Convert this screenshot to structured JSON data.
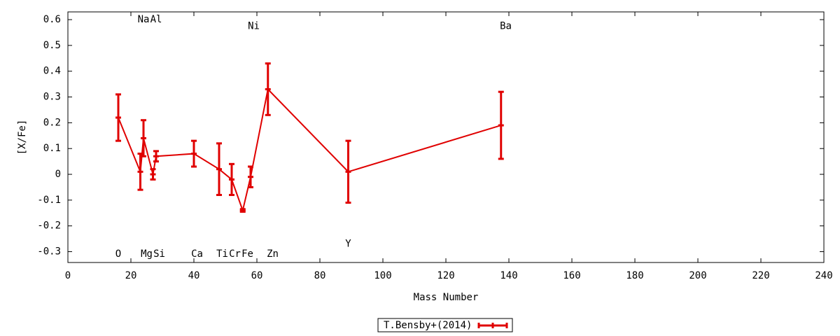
{
  "chart_data": {
    "type": "errorbar-line",
    "xlabel": "Mass Number",
    "ylabel": "[X/Fe]",
    "xlim": [
      0,
      240
    ],
    "xticks": [
      0,
      20,
      40,
      60,
      80,
      100,
      120,
      140,
      160,
      180,
      200,
      220,
      240
    ],
    "ylim": [
      -0.342,
      0.63
    ],
    "yticks": [
      -0.3,
      -0.2,
      -0.1,
      0,
      0.1,
      0.2,
      0.3,
      0.4,
      0.5,
      0.6
    ],
    "grid": false,
    "legend": "bottom",
    "series": [
      {
        "name": "T.Bensby+(2014)",
        "color": "#e00000",
        "x": [
          16,
          23,
          24,
          27,
          28,
          40,
          48,
          52,
          55.5,
          58,
          63.5,
          89,
          137.5
        ],
        "values": [
          0.22,
          0.01,
          0.14,
          0.0,
          0.07,
          0.08,
          0.02,
          -0.02,
          -0.14,
          -0.01,
          0.33,
          0.01,
          0.19
        ],
        "errors": [
          0.09,
          0.07,
          0.07,
          0.02,
          0.02,
          0.05,
          0.1,
          0.06,
          0.005,
          0.04,
          0.1,
          0.12,
          0.13
        ]
      }
    ],
    "annotations": [
      {
        "text": "O",
        "x": 16,
        "y": -0.31
      },
      {
        "text": "Na",
        "x": 24,
        "y": 0.6
      },
      {
        "text": "Mg",
        "x": 25,
        "y": -0.31
      },
      {
        "text": "Al",
        "x": 28,
        "y": 0.6
      },
      {
        "text": "Si",
        "x": 29,
        "y": -0.31
      },
      {
        "text": "Ca",
        "x": 41,
        "y": -0.31
      },
      {
        "text": "Ti",
        "x": 49,
        "y": -0.31
      },
      {
        "text": "Cr",
        "x": 53,
        "y": -0.31
      },
      {
        "text": "Fe",
        "x": 57,
        "y": -0.31
      },
      {
        "text": "Ni",
        "x": 59,
        "y": 0.575
      },
      {
        "text": "Zn",
        "x": 65,
        "y": -0.31
      },
      {
        "text": "Y",
        "x": 89,
        "y": -0.27
      },
      {
        "text": "Ba",
        "x": 139,
        "y": 0.575
      }
    ]
  }
}
